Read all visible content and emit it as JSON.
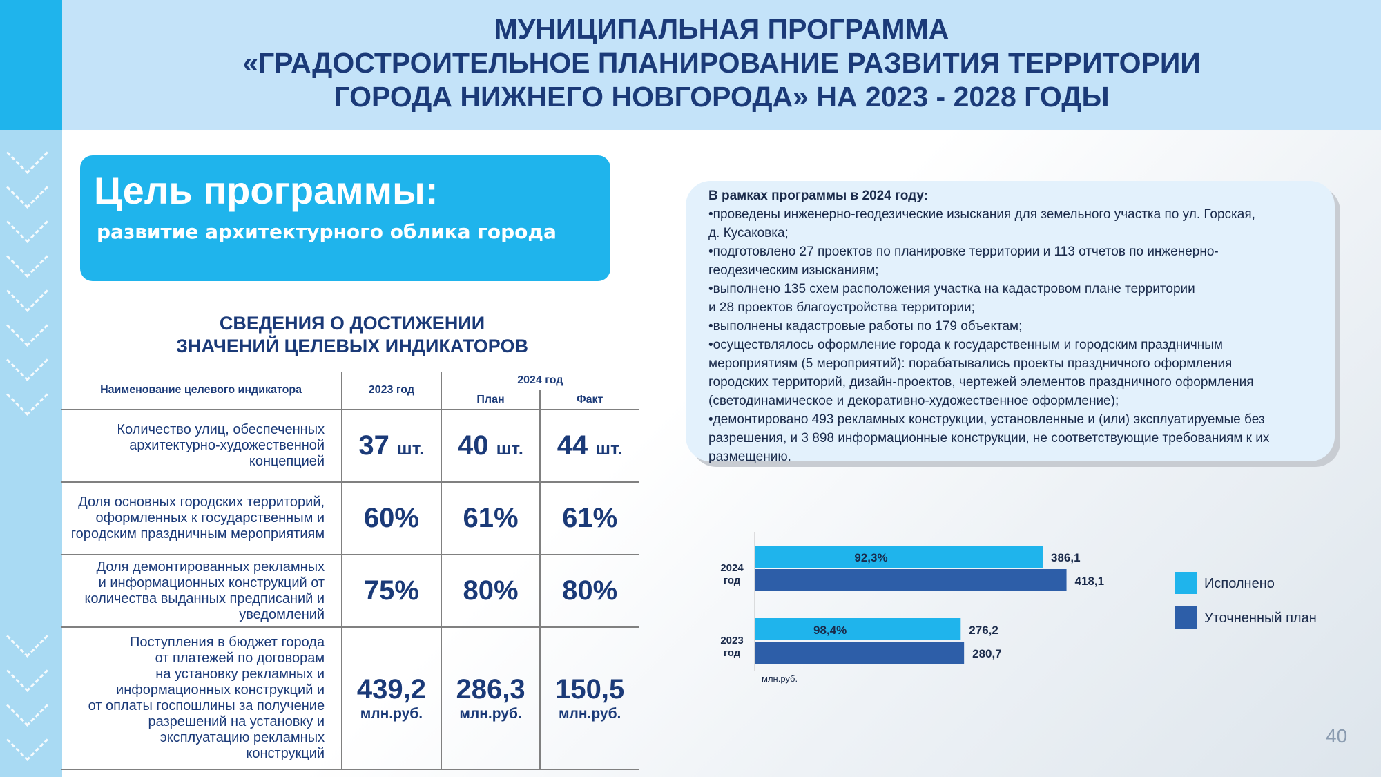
{
  "header": {
    "title_lines": [
      "МУНИЦИПАЛЬНАЯ ПРОГРАММА",
      "«ГРАДОСТРОИТЕЛЬНОЕ ПЛАНИРОВАНИЕ РАЗВИТИЯ ТЕРРИТОРИИ",
      "ГОРОДА НИЖНЕГО НОВГОРОДА» НА 2023 - 2028 ГОДЫ"
    ]
  },
  "goal": {
    "title": "Цель программы:",
    "text": "развитие архитектурного облика города"
  },
  "indicators": {
    "title_lines": [
      "СВЕДЕНИЯ О ДОСТИЖЕНИИ",
      "ЗНАЧЕНИЙ ЦЕЛЕВЫХ ИНДИКАТОРОВ"
    ],
    "col_name": "Наименование целевого индикатора",
    "col_2023": "2023 год",
    "col_2024": "2024 год",
    "col_plan": "План",
    "col_fact": "Факт",
    "rows": [
      {
        "name_lines": [
          "Количество улиц, обеспеченных",
          "архитектурно-художественной",
          "концепцией"
        ],
        "v2023": "37",
        "plan": "40",
        "fact": "44",
        "unit": "шт."
      },
      {
        "name_lines": [
          "Доля основных городских территорий,",
          "оформленных к государственным и",
          "городским праздничным мероприятиям"
        ],
        "v2023": "60%",
        "plan": "61%",
        "fact": "61%"
      },
      {
        "name_lines": [
          "Доля демонтированных рекламных",
          "и информационных конструкций от",
          "количества выданных предписаний и",
          "уведомлений"
        ],
        "v2023": "75%",
        "plan": "80%",
        "fact": "80%"
      },
      {
        "name_lines": [
          "Поступления в бюджет города",
          "от платежей по договорам",
          "на установку рекламных и",
          "информационных конструкций и",
          "от оплаты госпошлины за получение",
          "разрешений на установку и",
          "эксплуатацию рекламных",
          "конструкций"
        ],
        "v2023": "439,2",
        "plan": "286,3",
        "fact": "150,5",
        "unit": "млн.руб."
      }
    ]
  },
  "info": {
    "heading": "В рамках программы в 2024 году:",
    "lines": [
      "•проведены инженерно-геодезические изыскания для земельного участка по ул. Горская,",
      "д. Кусаковка;",
      "•подготовлено 27 проектов по планировке территории и 113 отчетов по инженерно-",
      "геодезическим изысканиям;",
      "•выполнено 135 схем расположения участка на кадастровом плане территории",
      "и 28 проектов благоустройства территории;",
      "•выполнены кадастровые работы по 179 объектам;",
      "•осуществлялось оформление города к государственным и городским праздничным",
      "мероприятиям (5 мероприятий): порабатывались проекты праздничного оформления",
      "городских территорий, дизайн-проектов, чертежей элементов праздничного оформления",
      "(светодинамическое и декоративно-художественное оформление);",
      "•демонтировано 493 рекламных конструкции, установленные и (или) эксплуатируемые без",
      "разрешения, и 3 898 информационные конструкции, не соответствующие требованиям к их",
      "размещению."
    ]
  },
  "chart_data": {
    "type": "bar",
    "orientation": "horizontal",
    "categories": [
      [
        "2024",
        "год"
      ],
      [
        "2023",
        "год"
      ]
    ],
    "series": [
      {
        "name": "Исполнено",
        "values": [
          386.1,
          276.2
        ],
        "labels": [
          "386,1",
          "276,2"
        ],
        "color": "#1fb4ec"
      },
      {
        "name": "Уточненный план",
        "values": [
          418.1,
          280.7
        ],
        "labels": [
          "418,1",
          "280,7"
        ],
        "color": "#2d5ea8"
      }
    ],
    "inner_labels": [
      "92,3%",
      "98,4%"
    ],
    "unit_label": "млн.руб.",
    "xlim": [
      0,
      500
    ],
    "legend": "right"
  },
  "page_number": "40"
}
